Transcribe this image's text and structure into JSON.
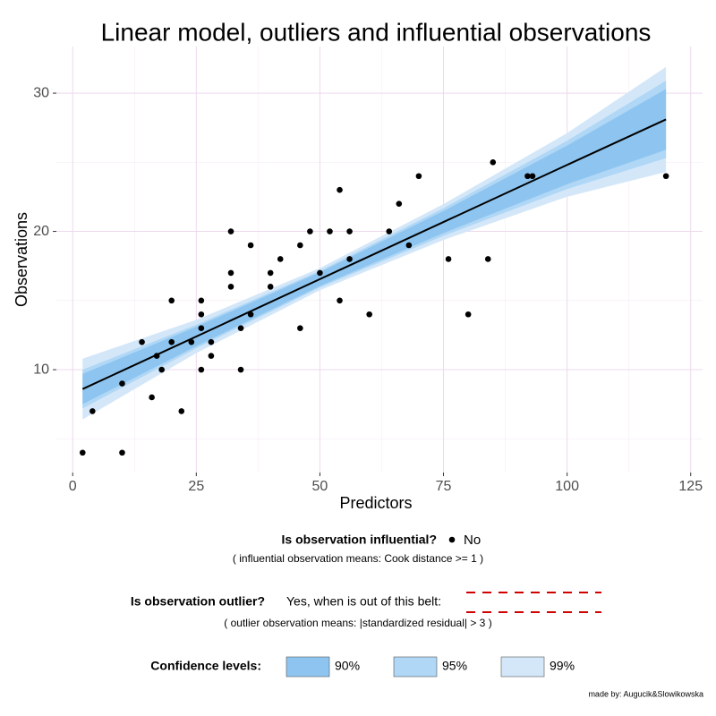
{
  "chart_data": {
    "type": "scatter",
    "title": "Linear model, outliers and influential observations",
    "x_label": "Predictors",
    "y_label": "Observations",
    "xlim": [
      -3.3,
      127.4
    ],
    "ylim": [
      2.56,
      33.37
    ],
    "xticks": [
      0,
      25,
      50,
      75,
      100,
      125
    ],
    "yticks": [
      10,
      20,
      30
    ],
    "xminor": [
      12.5,
      37.5,
      62.5,
      87.5,
      112.5
    ],
    "yminor": [
      5,
      15,
      25
    ],
    "grid": true,
    "grid_color": "#ecd9ec",
    "points": {
      "name": "No",
      "color": "#000000",
      "x": [
        2,
        4,
        10,
        10,
        14,
        16,
        17,
        18,
        20,
        20,
        22,
        24,
        26,
        26,
        26,
        26,
        28,
        28,
        32,
        32,
        32,
        34,
        34,
        36,
        36,
        40,
        40,
        42,
        46,
        46,
        48,
        50,
        52,
        54,
        54,
        56,
        56,
        60,
        64,
        66,
        68,
        70,
        76,
        80,
        84,
        85,
        92,
        93,
        120
      ],
      "values": [
        4,
        7,
        4,
        9,
        12,
        8,
        11,
        10,
        12,
        15,
        7,
        12,
        10,
        13,
        14,
        15,
        11,
        12,
        16,
        17,
        20,
        10,
        13,
        14,
        19,
        16,
        17,
        18,
        13,
        19,
        20,
        17,
        20,
        15,
        23,
        18,
        20,
        14,
        20,
        22,
        19,
        24,
        18,
        14,
        18,
        25,
        24,
        24,
        24
      ]
    },
    "fit": {
      "color": "#000000",
      "x": [
        2,
        25,
        50,
        75,
        100,
        120
      ],
      "values": [
        8.6,
        12.4,
        16.55,
        20.68,
        24.81,
        28.1
      ]
    },
    "bands": [
      {
        "name": "99%",
        "color": "#d3e7f9",
        "lower": [
          6.4,
          11.2,
          15.75,
          19.38,
          22.51,
          24.3
        ],
        "upper": [
          10.8,
          13.6,
          17.35,
          21.98,
          27.11,
          31.9
        ]
      },
      {
        "name": "95%",
        "color": "#b0d7f5",
        "lower": [
          7.2,
          11.55,
          15.95,
          19.68,
          23.06,
          25.3
        ],
        "upper": [
          10.0,
          13.25,
          17.15,
          21.68,
          26.56,
          30.9
        ]
      },
      {
        "name": "90%",
        "color": "#8ec5f0",
        "lower": [
          7.5,
          11.7,
          16.05,
          19.88,
          23.41,
          25.9
        ],
        "upper": [
          9.7,
          13.1,
          17.05,
          21.48,
          26.21,
          30.3
        ]
      }
    ],
    "legend": {
      "influential_title": "Is observation influential?",
      "influential_note": "( influential observation means: Cook distance >= 1 )",
      "outlier_title": "Is observation outlier?",
      "outlier_text": "Yes, when is out of this belt:",
      "outlier_note": "( outlier observation means: |standardized residual| > 3 )",
      "confidence_title": "Confidence levels:"
    },
    "credit": "made by: Augucik&Slowikowska"
  }
}
